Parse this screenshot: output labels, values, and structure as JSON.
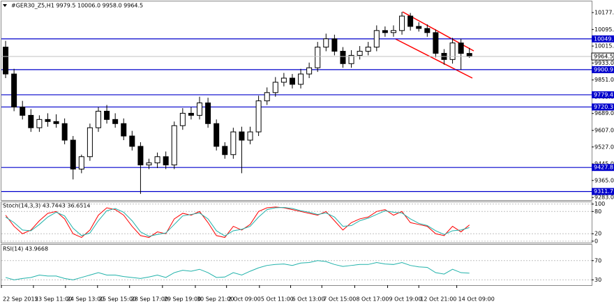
{
  "chart_data": [
    {
      "type": "candlestick",
      "title": "#GER30_Z5,H1  9979.5 10006.0 9958.0 9964.5",
      "open": [
        10010,
        9880,
        9720,
        9680,
        9620,
        9660,
        9650,
        9640,
        9560,
        9420,
        9480,
        9620,
        9700,
        9660,
        9640,
        9580,
        9530,
        9440,
        9450,
        9480,
        9440,
        9630,
        9690,
        9680,
        9740,
        9640,
        9530,
        9490,
        9600,
        9560,
        9600,
        9750,
        9790,
        9840,
        9860,
        9830,
        9880,
        9910,
        10010,
        10050,
        9990,
        9930,
        9970,
        9990,
        10010,
        10090,
        10080,
        10090,
        10160,
        10110,
        10100,
        10080,
        9980,
        9950,
        10030,
        9979.5
      ],
      "high": [
        10040,
        9905,
        9750,
        9710,
        9680,
        9690,
        9685,
        9665,
        9580,
        9490,
        9640,
        9720,
        9730,
        9690,
        9665,
        9605,
        9550,
        9470,
        9500,
        9505,
        9650,
        9715,
        9720,
        9770,
        9765,
        9660,
        9550,
        9620,
        9625,
        9625,
        9775,
        9815,
        9865,
        9885,
        9880,
        9905,
        9935,
        10035,
        10075,
        10070,
        10010,
        9995,
        10015,
        10035,
        10115,
        10110,
        10115,
        10180,
        10175,
        10130,
        10120,
        10095,
        10000,
        10055,
        10050,
        10006.0
      ],
      "low": [
        9860,
        9700,
        9660,
        9600,
        9600,
        9625,
        9620,
        9540,
        9370,
        9400,
        9460,
        9600,
        9640,
        9620,
        9560,
        9510,
        9300,
        9420,
        9425,
        9420,
        9420,
        9610,
        9660,
        9660,
        9620,
        9510,
        9470,
        9470,
        9400,
        9540,
        9580,
        9730,
        9770,
        9820,
        9810,
        9810,
        9860,
        9890,
        9990,
        9970,
        9910,
        9910,
        9950,
        9970,
        9990,
        10060,
        10060,
        10070,
        10090,
        10085,
        10060,
        9960,
        9925,
        9930,
        9900,
        9958.0
      ],
      "close": [
        9880,
        9720,
        9680,
        9620,
        9660,
        9650,
        9640,
        9560,
        9420,
        9480,
        9620,
        9700,
        9660,
        9640,
        9580,
        9530,
        9440,
        9450,
        9480,
        9440,
        9630,
        9690,
        9680,
        9740,
        9640,
        9530,
        9490,
        9600,
        9560,
        9600,
        9750,
        9790,
        9840,
        9860,
        9830,
        9880,
        9910,
        10010,
        10050,
        9990,
        9930,
        9970,
        9990,
        10010,
        10090,
        10080,
        10090,
        10160,
        10110,
        10100,
        10080,
        9980,
        9950,
        10030,
        9979.5,
        9964.5
      ],
      "xlim": [
        0,
        70
      ],
      "xticks": [
        {
          "value": 0,
          "label": "22 Sep 2015"
        },
        {
          "value": 3.8,
          "label": "23 Sep 11:00"
        },
        {
          "value": 7.6,
          "label": "24 Sep 13:00"
        },
        {
          "value": 11.4,
          "label": "25 Sep 15:00"
        },
        {
          "value": 15.2,
          "label": "28 Sep 17:00"
        },
        {
          "value": 19.1,
          "label": "29 Sep 19:00"
        },
        {
          "value": 23,
          "label": "30 Sep 21:00"
        },
        {
          "value": 26.7,
          "label": "2 Oct 09:00"
        },
        {
          "value": 30.6,
          "label": "5 Oct 11:00"
        },
        {
          "value": 34.3,
          "label": "6 Oct 13:00"
        },
        {
          "value": 38,
          "label": "7 Oct 15:00"
        },
        {
          "value": 41.9,
          "label": "8 Oct 17:00"
        },
        {
          "value": 45.8,
          "label": "9 Oct 19:00"
        },
        {
          "value": 49.5,
          "label": "12 Oct 21:00"
        },
        {
          "value": 54,
          "label": "14 Oct 09:00"
        }
      ],
      "ylim": [
        9270,
        10231
      ],
      "yticks": [
        {
          "value": 10177,
          "label": "10177.0"
        },
        {
          "value": 10095,
          "label": "10095.0"
        },
        {
          "value": 10015,
          "label": "10015.0"
        },
        {
          "value": 9933,
          "label": "9933.0"
        },
        {
          "value": 9851,
          "label": "9851.0"
        },
        {
          "value": 9769,
          "label": "9769.0"
        },
        {
          "value": 9689,
          "label": "9689.0"
        },
        {
          "value": 9607,
          "label": "9607.0"
        },
        {
          "value": 9527,
          "label": "9527.0"
        },
        {
          "value": 9445,
          "label": "9445.0"
        },
        {
          "value": 9365,
          "label": "9365.0"
        },
        {
          "value": 9283,
          "label": "9283.0"
        }
      ],
      "levels": [
        10049.7,
        9900.9,
        9779.4,
        9720.3,
        9427.8,
        9311.7
      ],
      "level_color": "#0000cc"
    },
    {
      "type": "line",
      "title": "Stoch(14,3,3) 43.7443 36.6514",
      "ylim": [
        -4,
        105
      ],
      "yticks": [
        100,
        80,
        20,
        0
      ],
      "series": [
        {
          "color": "#ff0000",
          "values": [
            70,
            40,
            20,
            30,
            55,
            75,
            80,
            60,
            20,
            10,
            30,
            70,
            90,
            85,
            70,
            40,
            15,
            10,
            25,
            20,
            60,
            75,
            70,
            80,
            50,
            15,
            10,
            40,
            30,
            45,
            80,
            90,
            92,
            90,
            85,
            80,
            75,
            70,
            80,
            55,
            30,
            50,
            60,
            65,
            80,
            85,
            70,
            80,
            50,
            45,
            40,
            20,
            15,
            40,
            25,
            43.7443
          ]
        },
        {
          "color": "#20b2aa",
          "values": [
            65,
            50,
            30,
            28,
            45,
            65,
            78,
            68,
            35,
            15,
            22,
            55,
            82,
            88,
            78,
            55,
            25,
            13,
            18,
            22,
            45,
            68,
            72,
            76,
            60,
            28,
            14,
            28,
            32,
            40,
            65,
            85,
            90,
            91,
            88,
            82,
            78,
            72,
            76,
            65,
            40,
            42,
            55,
            62,
            72,
            82,
            78,
            76,
            60,
            48,
            42,
            28,
            18,
            28,
            30,
            36.6514
          ]
        }
      ]
    },
    {
      "type": "line",
      "title": "RSI(14) 43.9668",
      "ylim": [
        19,
        103
      ],
      "yticks": [
        70,
        30
      ],
      "series": [
        {
          "color": "#20b2aa",
          "values": [
            35,
            30,
            33,
            35,
            40,
            38,
            38,
            33,
            30,
            35,
            40,
            45,
            40,
            40,
            37,
            35,
            33,
            36,
            40,
            35,
            45,
            50,
            48,
            52,
            45,
            35,
            36,
            45,
            40,
            48,
            55,
            60,
            62,
            63,
            60,
            65,
            66,
            70,
            68,
            62,
            58,
            60,
            62,
            62,
            66,
            63,
            62,
            66,
            60,
            57,
            56,
            45,
            42,
            52,
            45,
            43.9668
          ]
        }
      ]
    }
  ]
}
